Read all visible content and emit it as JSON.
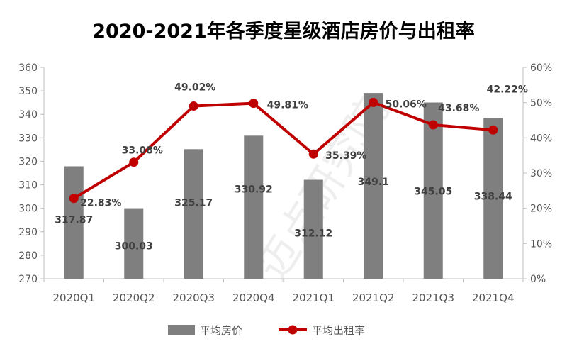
{
  "chart_data": {
    "type": "bar+line",
    "title": "2020-2021年各季度星级酒店房价与出租率",
    "categories": [
      "2020Q1",
      "2020Q2",
      "2020Q3",
      "2020Q4",
      "2021Q1",
      "2021Q2",
      "2021Q3",
      "2021Q4"
    ],
    "series": [
      {
        "name": "平均房价",
        "type": "bar",
        "axis": "left",
        "color": "#7f7f7f",
        "values": [
          317.87,
          300.03,
          325.17,
          330.92,
          312.12,
          349.1,
          345.05,
          338.44
        ],
        "labels": [
          "317.87",
          "300.03",
          "325.17",
          "330.92",
          "312.12",
          "349.1",
          "345.05",
          "338.44"
        ]
      },
      {
        "name": "平均出租率",
        "type": "line",
        "axis": "right",
        "color": "#c00000",
        "values": [
          22.83,
          33.08,
          49.02,
          49.81,
          35.39,
          50.06,
          43.68,
          42.22
        ],
        "labels": [
          "22.83%",
          "33.08%",
          "49.02%",
          "49.81%",
          "35.39%",
          "50.06%",
          "43.68%",
          "42.22%"
        ]
      }
    ],
    "y_left": {
      "min": 270,
      "max": 360,
      "ticks": [
        "270",
        "280",
        "290",
        "300",
        "310",
        "320",
        "330",
        "340",
        "350",
        "360"
      ]
    },
    "y_right": {
      "min": 0,
      "max": 60,
      "ticks": [
        "0%",
        "10%",
        "20%",
        "30%",
        "40%",
        "50%",
        "60%"
      ]
    },
    "legend": {
      "position": "bottom",
      "items": [
        "平均房价",
        "平均出租率"
      ]
    },
    "grid": false,
    "watermark": "迈点研究院"
  }
}
